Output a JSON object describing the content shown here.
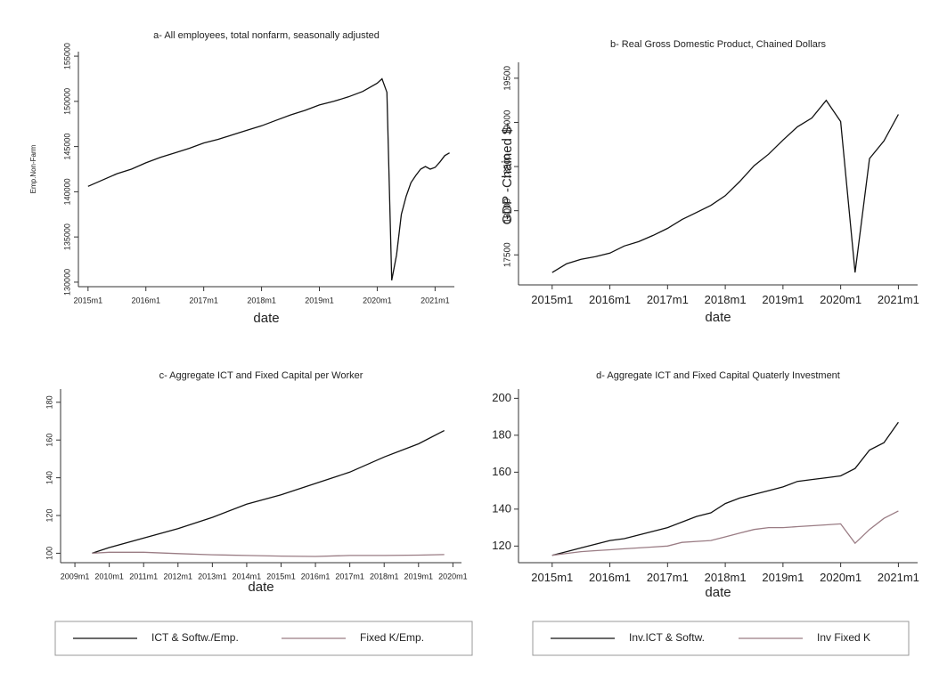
{
  "chart_data": [
    {
      "type": "line",
      "title": "a- All employees, total nonfarm, seasonally adjusted",
      "x_label": "date",
      "y_label": "Emp.Non-Farm",
      "x": [
        "2015m1",
        "2015m4",
        "2015m7",
        "2015m10",
        "2016m1",
        "2016m4",
        "2016m7",
        "2016m10",
        "2017m1",
        "2017m4",
        "2017m7",
        "2017m10",
        "2018m1",
        "2018m4",
        "2018m7",
        "2018m10",
        "2019m1",
        "2019m4",
        "2019m7",
        "2019m10",
        "2020m1",
        "2020m2",
        "2020m3",
        "2020m4",
        "2020m5",
        "2020m6",
        "2020m7",
        "2020m8",
        "2020m9",
        "2020m10",
        "2020m11",
        "2020m12",
        "2021m1",
        "2021m2",
        "2021m3",
        "2021m4"
      ],
      "values": [
        140600,
        141300,
        142000,
        142500,
        143200,
        143800,
        144300,
        144800,
        145400,
        145800,
        146300,
        146800,
        147300,
        147900,
        148500,
        149000,
        149600,
        150000,
        150500,
        151100,
        152000,
        152500,
        151000,
        130200,
        133000,
        137500,
        139500,
        141000,
        141800,
        142500,
        142800,
        142500,
        142700,
        143300,
        144000,
        144300
      ],
      "color": "#111111",
      "xlim": [
        "2014m11",
        "2021m5"
      ],
      "xticks": [
        "2015m1",
        "2016m1",
        "2017m1",
        "2018m1",
        "2019m1",
        "2020m1",
        "2021m1"
      ],
      "ylim": [
        129500,
        155500
      ],
      "yticks": [
        130000,
        135000,
        140000,
        145000,
        150000,
        155000
      ]
    },
    {
      "type": "line",
      "title": "b- Real Gross Domestic Product, Chained Dollars",
      "x_label": "date",
      "y_label": "GDP -Chained $-",
      "x": [
        "2015m1",
        "2015m4",
        "2015m7",
        "2015m10",
        "2016m1",
        "2016m4",
        "2016m7",
        "2016m10",
        "2017m1",
        "2017m4",
        "2017m7",
        "2017m10",
        "2018m1",
        "2018m4",
        "2018m7",
        "2018m10",
        "2019m1",
        "2019m4",
        "2019m7",
        "2019m10",
        "2020m1",
        "2020m4",
        "2020m7",
        "2020m10",
        "2021m1"
      ],
      "values": [
        17300,
        17400,
        17450,
        17480,
        17520,
        17600,
        17650,
        17720,
        17800,
        17900,
        17980,
        18060,
        18170,
        18330,
        18510,
        18640,
        18800,
        18950,
        19050,
        19250,
        19010,
        17300,
        18590,
        18790,
        19090
      ],
      "color": "#111111",
      "xlim": [
        "2014m6",
        "2021m5"
      ],
      "xticks": [
        "2015m1",
        "2016m1",
        "2017m1",
        "2018m1",
        "2019m1",
        "2020m1",
        "2021m1"
      ],
      "ylim": [
        17160,
        19680
      ],
      "yticks": [
        17500,
        18000,
        18500,
        19000,
        19500
      ]
    },
    {
      "type": "line",
      "title": "c- Aggregate ICT and Fixed Capital per Worker",
      "x_label": "date",
      "x": [
        "2009m7",
        "2010m1",
        "2011m1",
        "2012m1",
        "2013m1",
        "2014m1",
        "2015m1",
        "2016m1",
        "2017m1",
        "2018m1",
        "2019m1",
        "2019m10"
      ],
      "series": [
        {
          "name": "ICT & Softw./Emp.",
          "color": "#111111",
          "values": [
            100,
            103,
            108,
            113,
            119,
            126,
            131,
            137,
            143,
            151,
            158,
            165
          ]
        },
        {
          "name": "Fixed K/Emp.",
          "color": "#9a7c84",
          "values": [
            100,
            100.5,
            100.5,
            99.8,
            99.2,
            98.8,
            98.5,
            98.3,
            98.8,
            98.8,
            99,
            99.3
          ]
        }
      ],
      "xlim": [
        "2008m8",
        "2020m4"
      ],
      "xticks": [
        "2009m1",
        "2010m1",
        "2011m1",
        "2012m1",
        "2013m1",
        "2014m1",
        "2015m1",
        "2016m1",
        "2017m1",
        "2018m1",
        "2019m1",
        "2020m1"
      ],
      "ylim": [
        95,
        187
      ],
      "yticks": [
        100,
        120,
        140,
        160,
        180
      ]
    },
    {
      "type": "line",
      "title": "d- Aggregate ICT and Fixed Capital Quaterly Investment",
      "x_label": "date",
      "x": [
        "2015m1",
        "2015m4",
        "2015m7",
        "2015m10",
        "2016m1",
        "2016m4",
        "2016m7",
        "2016m10",
        "2017m1",
        "2017m4",
        "2017m7",
        "2017m10",
        "2018m1",
        "2018m4",
        "2018m7",
        "2018m10",
        "2019m1",
        "2019m4",
        "2019m7",
        "2019m10",
        "2020m1",
        "2020m4",
        "2020m7",
        "2020m10",
        "2021m1"
      ],
      "series": [
        {
          "name": "Inv.ICT & Softw.",
          "color": "#111111",
          "values": [
            115,
            117,
            119,
            121,
            123,
            124,
            126,
            128,
            130,
            133,
            136,
            138,
            143,
            146,
            148,
            150,
            152,
            155,
            156,
            157,
            158,
            162,
            172,
            176,
            187
          ]
        },
        {
          "name": "Inv Fixed K",
          "color": "#9a7c84",
          "values": [
            115,
            116,
            117,
            117.5,
            118,
            118.5,
            119,
            119.5,
            120,
            122,
            122.5,
            123,
            125,
            127,
            129,
            130,
            130,
            130.5,
            131,
            131.5,
            132,
            121.5,
            129,
            135,
            139
          ]
        }
      ],
      "xlim": [
        "2014m6",
        "2021m5"
      ],
      "xticks": [
        "2015m1",
        "2016m1",
        "2017m1",
        "2018m1",
        "2019m1",
        "2020m1",
        "2021m1"
      ],
      "ylim": [
        111,
        205
      ],
      "yticks": [
        120,
        140,
        160,
        180,
        200
      ]
    }
  ]
}
